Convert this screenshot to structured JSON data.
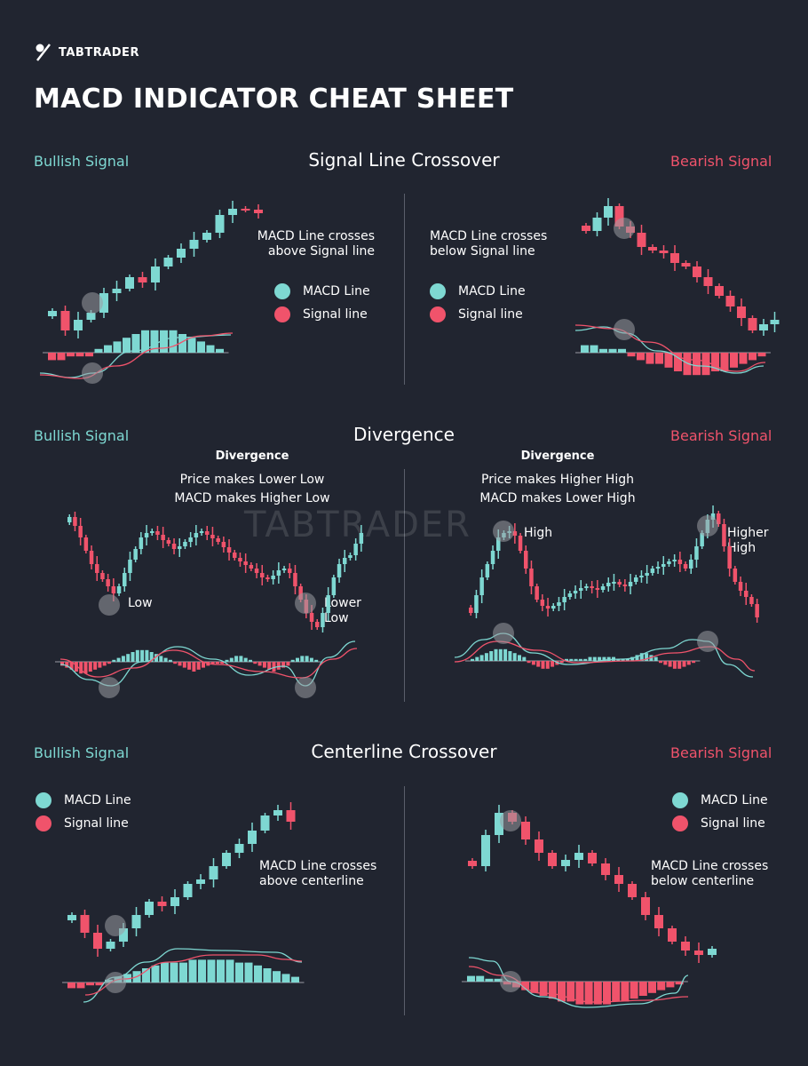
{
  "brand": {
    "name": "TABTRADER"
  },
  "title": "MACD INDICATOR CHEAT SHEET",
  "colors": {
    "bull": "#7ed8d2",
    "bear": "#f0536b",
    "bg": "#212530",
    "marker": "#9a9ca3"
  },
  "labels": {
    "bullish": "Bullish Signal",
    "bearish": "Bearish Signal",
    "macd_line": "MACD Line",
    "signal_line": "Signal line"
  },
  "sections": {
    "signal_crossover": {
      "title": "Signal Line Crossover",
      "bull_note": "MACD Line crosses above Signal line",
      "bear_note": "MACD Line crosses below Signal line"
    },
    "divergence": {
      "title": "Divergence",
      "bull_head": "Divergence",
      "bull_line1": "Price makes Lower Low",
      "bull_line2": "MACD makes Higher Low",
      "bear_head": "Divergence",
      "bear_line1": "Price makes Higher High",
      "bear_line2": "MACD makes Lower High",
      "low": "Low",
      "lower_low": "Lower Low",
      "high": "High",
      "higher_high": "Higher High"
    },
    "centerline": {
      "title": "Centerline Crossover",
      "bull_note": "MACD Line crosses above centerline",
      "bear_note": "MACD Line crosses below centerline"
    }
  },
  "chart_data": [
    {
      "type": "candlestick",
      "panel": "signal-line-crossover-bullish",
      "trend": "up",
      "candles": 14,
      "histogram": [
        -2,
        -3,
        -2,
        1,
        2,
        3,
        4,
        5,
        6,
        6,
        6,
        5,
        4,
        2
      ]
    },
    {
      "type": "candlestick",
      "panel": "signal-line-crossover-bearish",
      "trend": "down",
      "candles": 16,
      "histogram": [
        3,
        2,
        2,
        1,
        -1,
        -2,
        -3,
        -4,
        -5,
        -6,
        -6,
        -5,
        -4,
        -3,
        -2,
        -1
      ]
    },
    {
      "type": "candlestick",
      "panel": "divergence-bullish",
      "trend": "lower-low"
    },
    {
      "type": "candlestick",
      "panel": "divergence-bearish",
      "trend": "higher-high"
    },
    {
      "type": "candlestick",
      "panel": "centerline-crossover-bullish",
      "trend": "up",
      "histogram": [
        -2,
        -2,
        -1,
        1,
        2,
        4,
        5,
        6,
        7,
        8,
        8,
        8,
        7,
        6,
        5,
        3,
        2
      ]
    },
    {
      "type": "candlestick",
      "panel": "centerline-crossover-bearish",
      "trend": "down",
      "histogram": [
        2,
        2,
        1,
        -1,
        -2,
        -3,
        -4,
        -5,
        -6,
        -7,
        -7,
        -7,
        -6,
        -5,
        -4,
        -3,
        -2
      ]
    }
  ]
}
